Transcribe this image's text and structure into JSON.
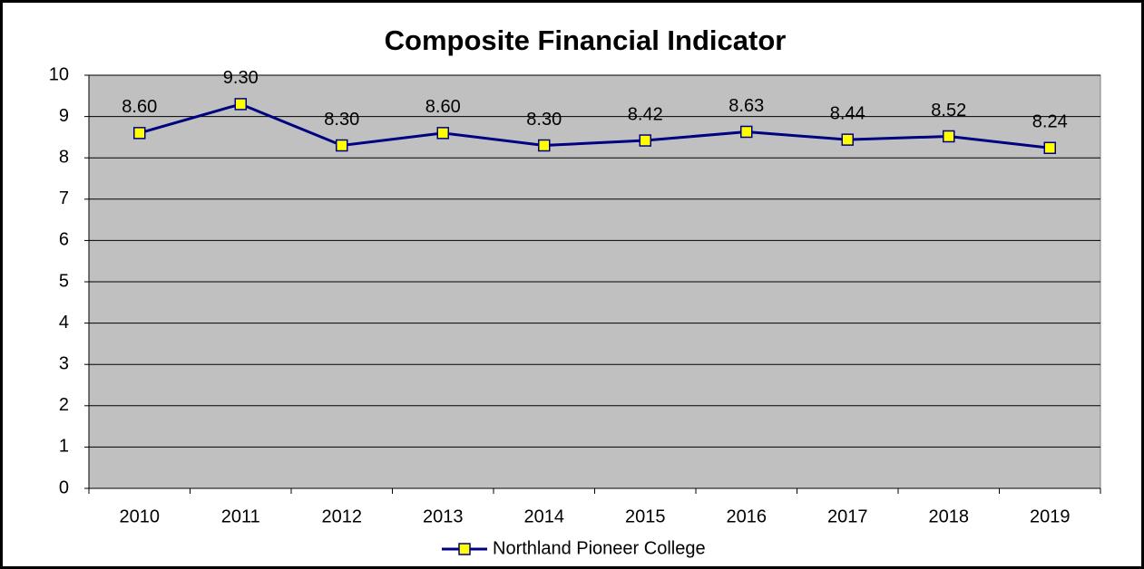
{
  "chart_data": {
    "type": "line",
    "title": "Composite Financial Indicator",
    "categories": [
      "2010",
      "2011",
      "2012",
      "2013",
      "2014",
      "2015",
      "2016",
      "2017",
      "2018",
      "2019"
    ],
    "series": [
      {
        "name": "Northland Pioneer College",
        "color": "#000080",
        "marker_color": "#ffff00",
        "values": [
          8.6,
          9.3,
          8.3,
          8.6,
          8.3,
          8.42,
          8.63,
          8.44,
          8.52,
          8.24
        ],
        "value_labels": [
          "8.60",
          "9.30",
          "8.30",
          "8.60",
          "8.30",
          "8.42",
          "8.63",
          "8.44",
          "8.52",
          "8.24"
        ]
      }
    ],
    "ylim": [
      0,
      10
    ],
    "yticks": [
      0,
      1,
      2,
      3,
      4,
      5,
      6,
      7,
      8,
      9,
      10
    ],
    "grid": true,
    "plot_background": "#c0c0c0",
    "legend": "bottom"
  }
}
